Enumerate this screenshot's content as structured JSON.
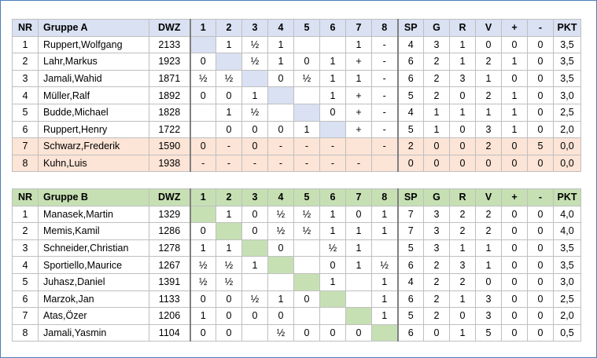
{
  "columns": [
    "NR",
    "",
    "DWZ",
    "1",
    "2",
    "3",
    "4",
    "5",
    "6",
    "7",
    "8",
    "SP",
    "G",
    "R",
    "V",
    "+",
    "-",
    "PKT"
  ],
  "groups": [
    {
      "title": "Gruppe A",
      "rows": [
        {
          "nr": "1",
          "name": "Ruppert,Wolfgang",
          "dwz": "2133",
          "results": [
            "",
            "1",
            "½",
            "1",
            "",
            "",
            "1",
            "-"
          ],
          "sp": "4",
          "g": "3",
          "r": "1",
          "v": "0",
          "plus": "0",
          "minus": "0",
          "pkt": "3,5"
        },
        {
          "nr": "2",
          "name": "Lahr,Markus",
          "dwz": "1923",
          "results": [
            "0",
            "",
            "½",
            "1",
            "0",
            "1",
            "+",
            "-"
          ],
          "sp": "6",
          "g": "2",
          "r": "1",
          "v": "2",
          "plus": "1",
          "minus": "0",
          "pkt": "3,5"
        },
        {
          "nr": "3",
          "name": "Jamali,Wahid",
          "dwz": "1871",
          "results": [
            "½",
            "½",
            "",
            "0",
            "½",
            "1",
            "1",
            "-"
          ],
          "sp": "6",
          "g": "2",
          "r": "3",
          "v": "1",
          "plus": "0",
          "minus": "0",
          "pkt": "3,5"
        },
        {
          "nr": "4",
          "name": "Müller,Ralf",
          "dwz": "1892",
          "results": [
            "0",
            "0",
            "1",
            "",
            "",
            "1",
            "+",
            "-"
          ],
          "sp": "5",
          "g": "2",
          "r": "0",
          "v": "2",
          "plus": "1",
          "minus": "0",
          "pkt": "3,0"
        },
        {
          "nr": "5",
          "name": "Budde,Michael",
          "dwz": "1828",
          "results": [
            "",
            "1",
            "½",
            "",
            "",
            "0",
            "+",
            "-"
          ],
          "sp": "4",
          "g": "1",
          "r": "1",
          "v": "1",
          "plus": "1",
          "minus": "0",
          "pkt": "2,5"
        },
        {
          "nr": "6",
          "name": "Ruppert,Henry",
          "dwz": "1722",
          "results": [
            "",
            "0",
            "0",
            "0",
            "1",
            "",
            "+",
            "-"
          ],
          "sp": "5",
          "g": "1",
          "r": "0",
          "v": "3",
          "plus": "1",
          "minus": "0",
          "pkt": "2,0"
        },
        {
          "nr": "7",
          "name": "Schwarz,Frederik",
          "dwz": "1590",
          "results": [
            "0",
            "-",
            "0",
            "-",
            "-",
            "-",
            "",
            "-"
          ],
          "sp": "2",
          "g": "0",
          "r": "0",
          "v": "2",
          "plus": "0",
          "minus": "5",
          "pkt": "0,0"
        },
        {
          "nr": "8",
          "name": "Kuhn,Luis",
          "dwz": "1938",
          "results": [
            "-",
            "-",
            "-",
            "-",
            "-",
            "-",
            "-",
            ""
          ],
          "sp": "0",
          "g": "0",
          "r": "0",
          "v": "0",
          "plus": "0",
          "minus": "0",
          "pkt": "0,0"
        }
      ]
    },
    {
      "title": "Gruppe B",
      "rows": [
        {
          "nr": "1",
          "name": "Manasek,Martin",
          "dwz": "1329",
          "results": [
            "",
            "1",
            "0",
            "½",
            "½",
            "1",
            "0",
            "1"
          ],
          "sp": "7",
          "g": "3",
          "r": "2",
          "v": "2",
          "plus": "0",
          "minus": "0",
          "pkt": "4,0"
        },
        {
          "nr": "2",
          "name": "Memis,Kamil",
          "dwz": "1286",
          "results": [
            "0",
            "",
            "0",
            "½",
            "½",
            "1",
            "1",
            "1"
          ],
          "sp": "7",
          "g": "3",
          "r": "2",
          "v": "2",
          "plus": "0",
          "minus": "0",
          "pkt": "4,0"
        },
        {
          "nr": "3",
          "name": "Schneider,Christian",
          "dwz": "1278",
          "results": [
            "1",
            "1",
            "",
            "0",
            "",
            "½",
            "1",
            ""
          ],
          "sp": "5",
          "g": "3",
          "r": "1",
          "v": "1",
          "plus": "0",
          "minus": "0",
          "pkt": "3,5"
        },
        {
          "nr": "4",
          "name": "Sportiello,Maurice",
          "dwz": "1267",
          "results": [
            "½",
            "½",
            "1",
            "",
            "",
            "0",
            "1",
            "½"
          ],
          "sp": "6",
          "g": "2",
          "r": "3",
          "v": "1",
          "plus": "0",
          "minus": "0",
          "pkt": "3,5"
        },
        {
          "nr": "5",
          "name": "Juhasz,Daniel",
          "dwz": "1391",
          "results": [
            "½",
            "½",
            "",
            "",
            "",
            "1",
            "",
            "1"
          ],
          "sp": "4",
          "g": "2",
          "r": "2",
          "v": "0",
          "plus": "0",
          "minus": "0",
          "pkt": "3,0"
        },
        {
          "nr": "6",
          "name": "Marzok,Jan",
          "dwz": "1133",
          "results": [
            "0",
            "0",
            "½",
            "1",
            "0",
            "",
            "",
            "1"
          ],
          "sp": "6",
          "g": "2",
          "r": "1",
          "v": "3",
          "plus": "0",
          "minus": "0",
          "pkt": "2,5"
        },
        {
          "nr": "7",
          "name": "Atas,Özer",
          "dwz": "1206",
          "results": [
            "1",
            "0",
            "0",
            "0",
            "",
            "",
            "",
            "1"
          ],
          "sp": "5",
          "g": "2",
          "r": "0",
          "v": "3",
          "plus": "0",
          "minus": "0",
          "pkt": "2,0"
        },
        {
          "nr": "8",
          "name": "Jamali,Yasmin",
          "dwz": "1104",
          "results": [
            "0",
            "0",
            "",
            "½",
            "0",
            "0",
            "0",
            ""
          ],
          "sp": "6",
          "g": "0",
          "r": "1",
          "v": "5",
          "plus": "0",
          "minus": "0",
          "pkt": "0,5"
        }
      ]
    }
  ],
  "colors": {
    "frame_border": "#4a7ebb",
    "header_a": "#d9e1f2",
    "header_b": "#c6e0b4",
    "relegated_row": "#fce4d6",
    "grid": "#bfbfbf"
  }
}
